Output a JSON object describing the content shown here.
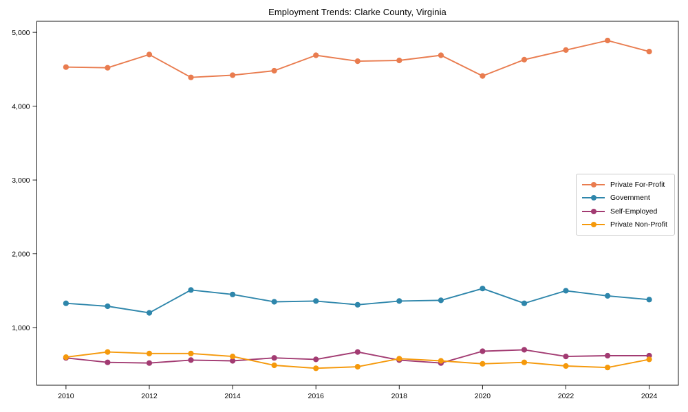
{
  "chart_data": {
    "type": "line",
    "title": "Employment Trends: Clarke County, Virginia",
    "xlabel": "",
    "ylabel": "",
    "x": [
      2010,
      2011,
      2012,
      2013,
      2014,
      2015,
      2016,
      2017,
      2018,
      2019,
      2020,
      2021,
      2022,
      2023,
      2024
    ],
    "x_ticks": [
      2010,
      2012,
      2014,
      2016,
      2018,
      2020,
      2022,
      2024
    ],
    "y_ticks": [
      1000,
      2000,
      3000,
      4000,
      5000
    ],
    "y_tick_labels": [
      "1,000",
      "2,000",
      "3,000",
      "4,000",
      "5,000"
    ],
    "xlim": [
      2009.3,
      2024.7
    ],
    "ylim": [
      220,
      5150
    ],
    "grid": false,
    "legend_position": "center-right",
    "series": [
      {
        "name": "Private For-Profit",
        "color": "#E97C4F",
        "values": [
          4530,
          4520,
          4700,
          4390,
          4420,
          4480,
          4690,
          4610,
          4620,
          4690,
          4410,
          4630,
          4760,
          4890,
          4740
        ]
      },
      {
        "name": "Government",
        "color": "#2E86AB",
        "values": [
          1330,
          1290,
          1200,
          1510,
          1450,
          1350,
          1360,
          1310,
          1360,
          1370,
          1530,
          1330,
          1500,
          1430,
          1380
        ]
      },
      {
        "name": "Self-Employed",
        "color": "#A23B72",
        "values": [
          590,
          530,
          520,
          560,
          550,
          590,
          570,
          670,
          560,
          520,
          680,
          700,
          610,
          620,
          620
        ]
      },
      {
        "name": "Private Non-Profit",
        "color": "#F5990B",
        "values": [
          600,
          670,
          650,
          650,
          610,
          490,
          450,
          470,
          580,
          550,
          510,
          530,
          480,
          460,
          570
        ]
      }
    ]
  }
}
